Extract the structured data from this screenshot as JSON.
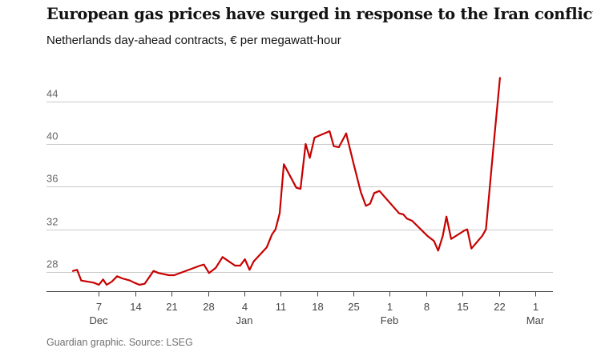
{
  "chart_data": {
    "type": "line",
    "title": "European gas prices have surged in response to the Iran conflict",
    "subtitle": "Netherlands day-ahead contracts, € per megawatt-hour",
    "source": "Guardian graphic. Source: LSEG",
    "xlabel": "",
    "ylabel": "€ per megawatt-hour",
    "ylim": [
      26.2,
      47.5
    ],
    "xlim": [
      0,
      94
    ],
    "yticks": [
      28,
      32,
      36,
      40,
      44
    ],
    "xticks": [
      {
        "x": 7,
        "label": "7"
      },
      {
        "x": 14,
        "label": "14"
      },
      {
        "x": 21,
        "label": "21"
      },
      {
        "x": 28,
        "label": "28"
      },
      {
        "x": 35,
        "label": "4"
      },
      {
        "x": 42,
        "label": "11"
      },
      {
        "x": 49,
        "label": "18"
      },
      {
        "x": 56,
        "label": "25"
      },
      {
        "x": 63,
        "label": "1"
      },
      {
        "x": 70,
        "label": "8"
      },
      {
        "x": 77,
        "label": "15"
      },
      {
        "x": 84,
        "label": "22"
      },
      {
        "x": 91,
        "label": "1"
      }
    ],
    "month_labels": [
      {
        "x": 7,
        "label": "Dec"
      },
      {
        "x": 35,
        "label": "Jan"
      },
      {
        "x": 63,
        "label": "Feb"
      },
      {
        "x": 91,
        "label": "Mar"
      }
    ],
    "grid": true,
    "series": [
      {
        "name": "Netherlands day-ahead",
        "color": "#c70000",
        "points": [
          [
            2,
            28.1
          ],
          [
            2.8,
            28.2
          ],
          [
            3.6,
            27.2
          ],
          [
            6,
            27.0
          ],
          [
            7,
            26.8
          ],
          [
            7.8,
            27.3
          ],
          [
            8.5,
            26.8
          ],
          [
            9.5,
            27.1
          ],
          [
            10.5,
            27.6
          ],
          [
            11.5,
            27.4
          ],
          [
            13,
            27.2
          ],
          [
            13.8,
            27.0
          ],
          [
            14.8,
            26.8
          ],
          [
            15.8,
            26.9
          ],
          [
            17.5,
            28.1
          ],
          [
            18.5,
            27.9
          ],
          [
            20.5,
            27.7
          ],
          [
            21.5,
            27.7
          ],
          [
            26.5,
            28.6
          ],
          [
            27.2,
            28.7
          ],
          [
            28.2,
            27.9
          ],
          [
            29.5,
            28.4
          ],
          [
            30.8,
            29.4
          ],
          [
            32,
            29.0
          ],
          [
            33.2,
            28.6
          ],
          [
            34.2,
            28.6
          ],
          [
            35.1,
            29.2
          ],
          [
            36,
            28.2
          ],
          [
            36.8,
            29.0
          ],
          [
            39.3,
            30.3
          ],
          [
            40.3,
            31.5
          ],
          [
            41,
            32.0
          ],
          [
            41.8,
            33.5
          ],
          [
            42.6,
            38.1
          ],
          [
            45,
            35.9
          ],
          [
            45.8,
            35.8
          ],
          [
            46.8,
            40.0
          ],
          [
            47.6,
            38.7
          ],
          [
            48.5,
            40.6
          ],
          [
            51.4,
            41.2
          ],
          [
            52.2,
            39.8
          ],
          [
            53.2,
            39.7
          ],
          [
            54.6,
            41.0
          ],
          [
            56,
            38.2
          ],
          [
            57.4,
            35.5
          ],
          [
            58.4,
            34.2
          ],
          [
            59.2,
            34.4
          ],
          [
            60,
            35.4
          ],
          [
            61,
            35.6
          ],
          [
            64.8,
            33.5
          ],
          [
            65.6,
            33.4
          ],
          [
            66.3,
            33.0
          ],
          [
            67.3,
            32.8
          ],
          [
            70.2,
            31.4
          ],
          [
            71.5,
            30.9
          ],
          [
            72.3,
            30.0
          ],
          [
            73.2,
            31.4
          ],
          [
            73.9,
            33.2
          ],
          [
            74.8,
            31.1
          ],
          [
            77.4,
            31.9
          ],
          [
            77.9,
            32.0
          ],
          [
            78.7,
            30.2
          ],
          [
            80.8,
            31.4
          ],
          [
            81.5,
            32.0
          ],
          [
            83,
            40.0
          ],
          [
            84.2,
            46.2
          ]
        ]
      }
    ]
  }
}
